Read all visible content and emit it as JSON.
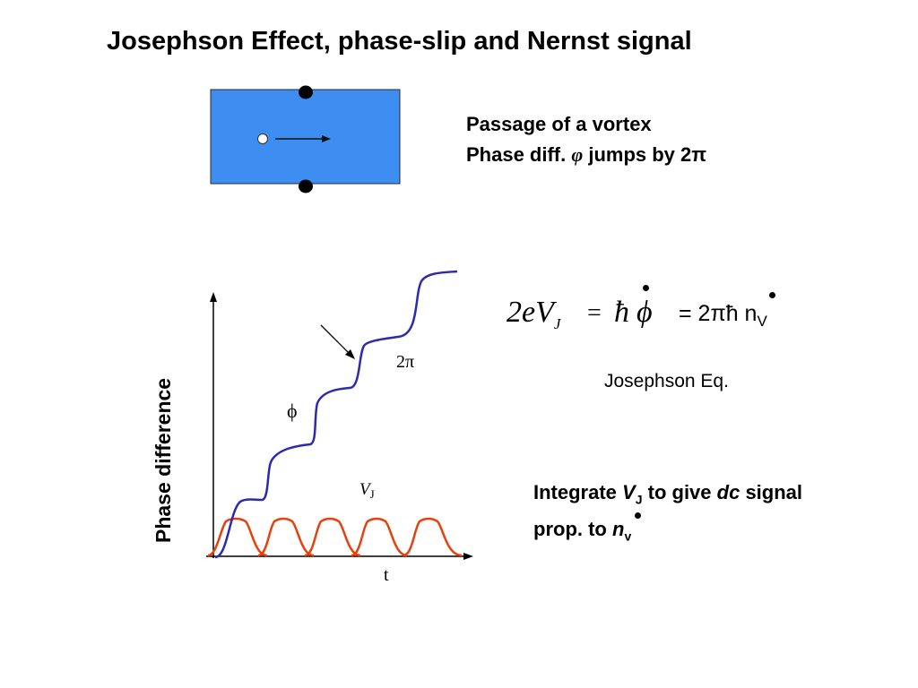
{
  "title": "Josephson Effect, phase-slip and Nernst signal",
  "vortex_caption": {
    "line1": "Passage of a vortex",
    "line2_prefix": "Phase diff. ",
    "phi_symbol": "φ",
    "line2_suffix": " jumps by 2π"
  },
  "graph": {
    "ylabel": "Phase difference",
    "xlabel": "t",
    "step_label": "2π",
    "phi_label": "ϕ",
    "vj_label": "V",
    "vj_sub": "J",
    "colors": {
      "phase_curve": "#2b2bb0",
      "vj_curve": "#e8400c",
      "axes": "#000000"
    }
  },
  "equation": {
    "lhs": "2eV",
    "lhs_sub": "J",
    "equals": "=",
    "hbar": "ħ",
    "phi": "ϕ",
    "rhs": "= 2πħ n",
    "rhs_sub": "V"
  },
  "equation_label": "Josephson Eq.",
  "integrate_caption": {
    "w1": "Integrate ",
    "v": "V",
    "v_sub": "J",
    "w2": " to give ",
    "dc": "dc",
    "w3": " signal",
    "line2": "prop. to ",
    "n": "n",
    "n_sub": "v"
  },
  "colors": {
    "junction_fill": "#3d8ef0"
  }
}
